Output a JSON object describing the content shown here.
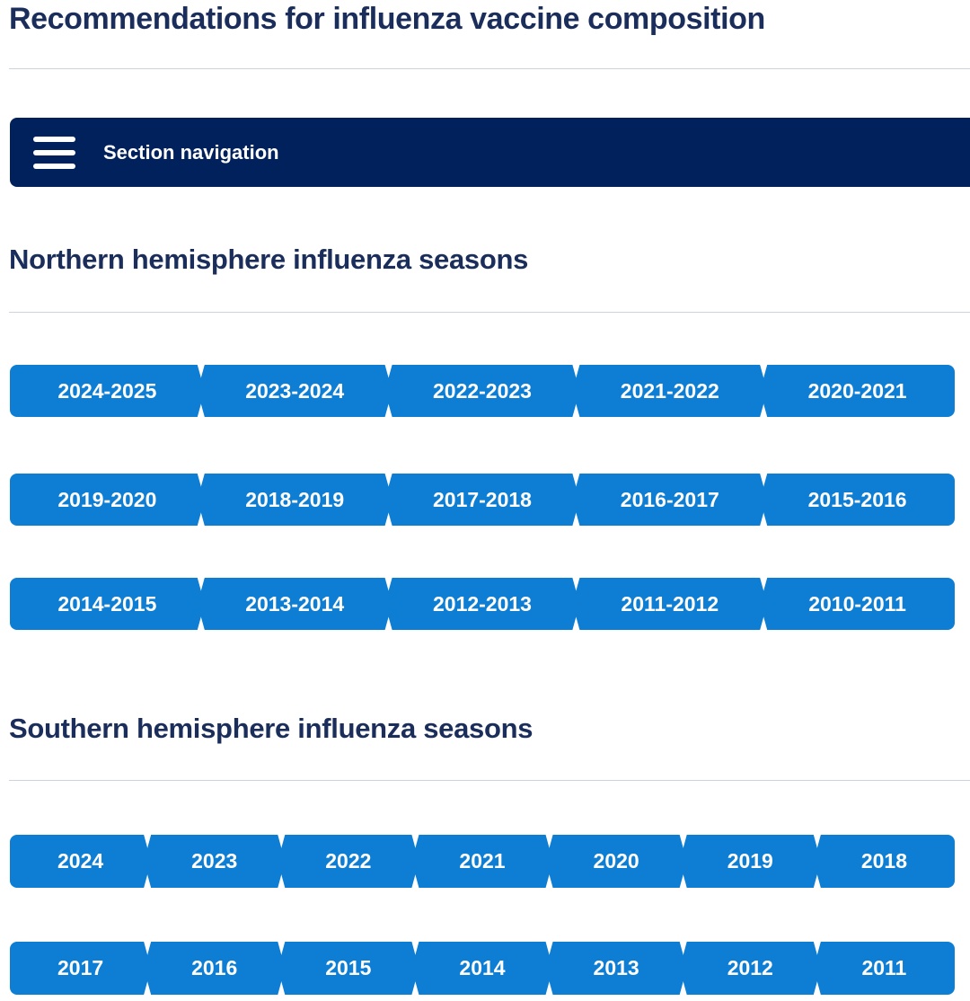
{
  "page": {
    "title": "Recommendations for influenza vaccine composition"
  },
  "section_nav": {
    "label": "Section navigation",
    "icon": "hamburger-menu-icon"
  },
  "sections": {
    "northern": {
      "heading": "Northern hemisphere influenza seasons",
      "rows": [
        [
          "2024-2025",
          "2023-2024",
          "2022-2023",
          "2021-2022",
          "2020-2021"
        ],
        [
          "2019-2020",
          "2018-2019",
          "2017-2018",
          "2016-2017",
          "2015-2016"
        ],
        [
          "2014-2015",
          "2013-2014",
          "2012-2013",
          "2011-2012",
          "2010-2011"
        ]
      ]
    },
    "southern": {
      "heading": "Southern hemisphere influenza seasons",
      "rows": [
        [
          "2024",
          "2023",
          "2022",
          "2021",
          "2020",
          "2019",
          "2018"
        ],
        [
          "2017",
          "2016",
          "2015",
          "2014",
          "2013",
          "2012",
          "2011"
        ]
      ]
    }
  },
  "decorations": {
    "trailing_dot": "blue-dot-after-2011"
  },
  "colors": {
    "heading_navy": "#1b2d5b",
    "nav_bar_navy": "#01215d",
    "button_blue": "#0d7ed3",
    "button_text": "#ffffff",
    "divider": "#ccd4df"
  }
}
